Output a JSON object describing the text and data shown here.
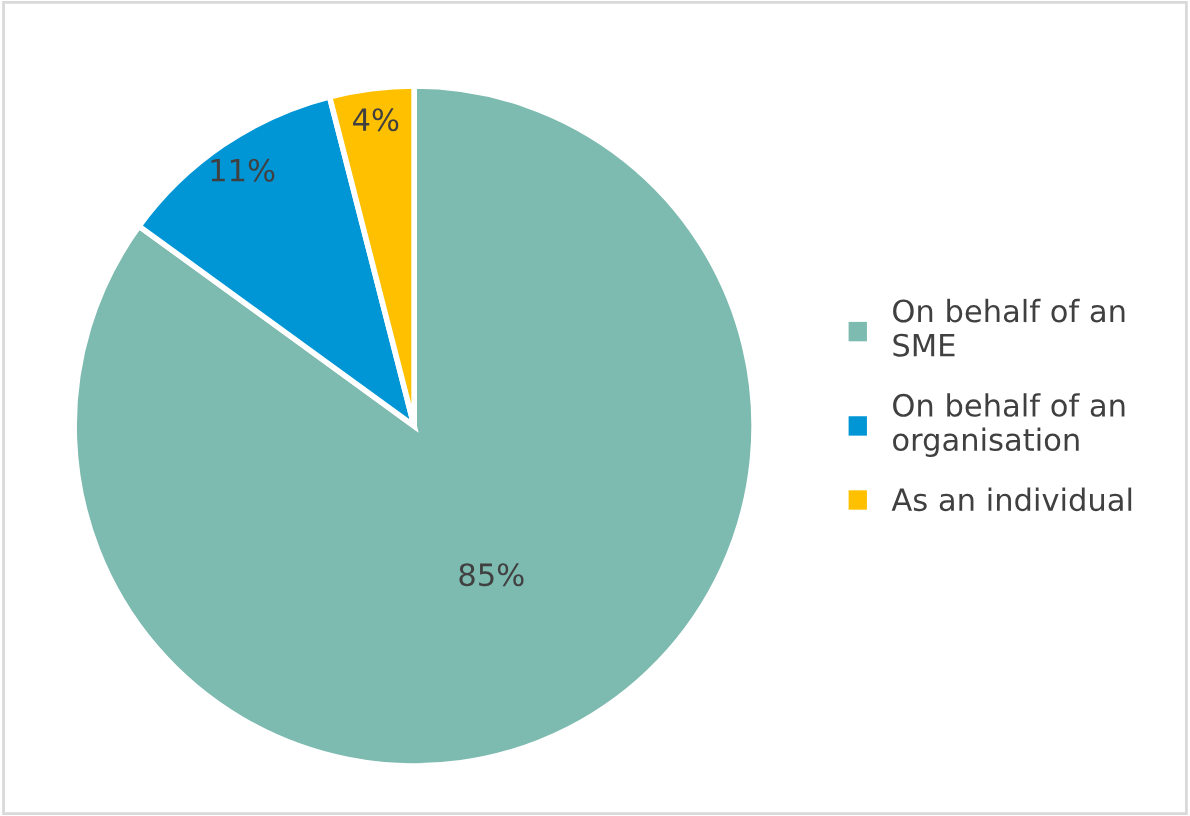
{
  "chart_data": {
    "type": "pie",
    "categories": [
      "On behalf of an SME",
      "On behalf of an organisation",
      "As an individual"
    ],
    "values": [
      85,
      11,
      4
    ],
    "colors": [
      "#7dbab0",
      "#0096d6",
      "#ffc000"
    ],
    "value_labels": [
      "85%",
      "11%",
      "4%"
    ],
    "legend": "right"
  }
}
